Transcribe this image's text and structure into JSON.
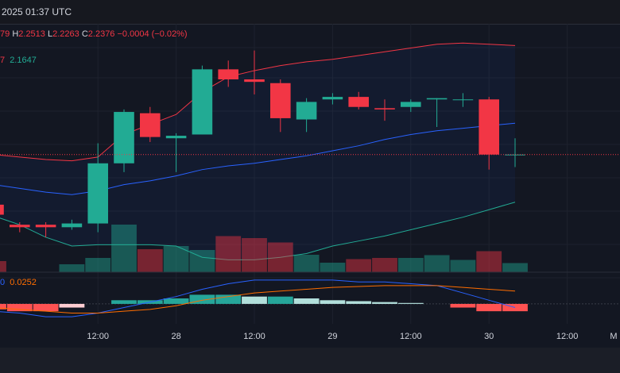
{
  "header": {
    "timestamp": "2025 01:37 UTC"
  },
  "legend": {
    "open_value": "79",
    "high_label": "H",
    "high_value": "2.2513",
    "low_label": "L",
    "low_value": "2.2263",
    "close_label": "C",
    "close_value": "2.2376",
    "change": "−0.0004 (−0.02%)",
    "bb_prefix": "7",
    "bb_value": "2.1647",
    "macd_prefix": "0",
    "macd_value": "0.0252"
  },
  "colors": {
    "up": "#22ab94",
    "down": "#f23645",
    "bb_upper": "#f23645",
    "bb_basis": "#2962ff",
    "bb_lower": "#22ab94",
    "macd": "#2962ff",
    "signal": "#ff6d00"
  },
  "xaxis": {
    "ticks": [
      {
        "label": "12:00",
        "at": 4
      },
      {
        "label": "28",
        "at": 7
      },
      {
        "label": "12:00",
        "at": 10
      },
      {
        "label": "29",
        "at": 13
      },
      {
        "label": "12:00",
        "at": 16
      },
      {
        "label": "30",
        "at": 19
      },
      {
        "label": "12:00",
        "at": 22
      },
      {
        "label": "M",
        "at": 25
      }
    ]
  },
  "chart_data": {
    "type": "candlestick",
    "candles": [
      {
        "o": 2.172,
        "h": 2.176,
        "l": 2.154,
        "c": 2.164,
        "v": 0.28
      },
      {
        "o": 2.156,
        "h": 2.158,
        "l": 2.15,
        "c": 2.154,
        "v": 0.0
      },
      {
        "o": 2.156,
        "h": 2.158,
        "l": 2.146,
        "c": 2.154,
        "v": 0.0
      },
      {
        "o": 2.154,
        "h": 2.16,
        "l": 2.152,
        "c": 2.157,
        "v": 0.2
      },
      {
        "o": 2.157,
        "h": 2.221,
        "l": 2.15,
        "c": 2.205,
        "v": 0.36
      },
      {
        "o": 2.205,
        "h": 2.248,
        "l": 2.198,
        "c": 2.246,
        "v": 1.2
      },
      {
        "o": 2.245,
        "h": 2.25,
        "l": 2.222,
        "c": 2.226,
        "v": 0.58
      },
      {
        "o": 2.225,
        "h": 2.229,
        "l": 2.198,
        "c": 2.227,
        "v": 0.66
      },
      {
        "o": 2.228,
        "h": 2.283,
        "l": 2.228,
        "c": 2.28,
        "v": 0.56
      },
      {
        "o": 2.28,
        "h": 2.287,
        "l": 2.266,
        "c": 2.272,
        "v": 0.91
      },
      {
        "o": 2.272,
        "h": 2.295,
        "l": 2.26,
        "c": 2.27,
        "v": 0.86
      },
      {
        "o": 2.269,
        "h": 2.272,
        "l": 2.23,
        "c": 2.241,
        "v": 0.75
      },
      {
        "o": 2.24,
        "h": 2.257,
        "l": 2.23,
        "c": 2.254,
        "v": 0.44
      },
      {
        "o": 2.256,
        "h": 2.261,
        "l": 2.252,
        "c": 2.258,
        "v": 0.24
      },
      {
        "o": 2.258,
        "h": 2.262,
        "l": 2.248,
        "c": 2.25,
        "v": 0.33
      },
      {
        "o": 2.249,
        "h": 2.256,
        "l": 2.239,
        "c": 2.248,
        "v": 0.36
      },
      {
        "o": 2.25,
        "h": 2.256,
        "l": 2.246,
        "c": 2.254,
        "v": 0.36
      },
      {
        "o": 2.256,
        "h": 2.257,
        "l": 2.234,
        "c": 2.257,
        "v": 0.43
      },
      {
        "o": 2.256,
        "h": 2.261,
        "l": 2.25,
        "c": 2.256,
        "v": 0.31
      },
      {
        "o": 2.256,
        "h": 2.258,
        "l": 2.2,
        "c": 2.212,
        "v": 0.53
      },
      {
        "o": 2.212,
        "h": 2.225,
        "l": 2.202,
        "c": 2.212,
        "v": 0.23
      }
    ],
    "bb_upper": [
      2.212,
      2.21,
      2.208,
      2.207,
      2.21,
      2.228,
      2.236,
      2.244,
      2.262,
      2.274,
      2.279,
      2.283,
      2.286,
      2.288,
      2.291,
      2.294,
      2.297,
      2.3,
      2.301,
      2.3,
      2.299
    ],
    "bb_basis": [
      2.188,
      2.185,
      2.182,
      2.18,
      2.183,
      2.188,
      2.191,
      2.195,
      2.2,
      2.203,
      2.205,
      2.208,
      2.211,
      2.215,
      2.219,
      2.224,
      2.228,
      2.231,
      2.233,
      2.235,
      2.237
    ],
    "bb_lower": [
      2.163,
      2.156,
      2.146,
      2.139,
      2.14,
      2.14,
      2.14,
      2.139,
      2.13,
      2.128,
      2.128,
      2.13,
      2.133,
      2.139,
      2.143,
      2.147,
      2.152,
      2.157,
      2.162,
      2.168,
      2.174
    ],
    "price_range": [
      2.12,
      2.31
    ],
    "last_price": 2.212,
    "macd": [
      -0.004,
      -0.005,
      -0.007,
      -0.007,
      -0.005,
      -0.002,
      0.001,
      0.004,
      0.008,
      0.011,
      0.013,
      0.013,
      0.013,
      0.013,
      0.012,
      0.012,
      0.011,
      0.01,
      0.006,
      0.002,
      -0.002
    ],
    "signal": [
      -0.002,
      -0.003,
      -0.004,
      -0.005,
      -0.005,
      -0.004,
      -0.003,
      -0.001,
      0.002,
      0.004,
      0.006,
      0.007,
      0.008,
      0.009,
      0.0095,
      0.01,
      0.01,
      0.01,
      0.009,
      0.008,
      0.007
    ],
    "hist": [
      -0.003,
      -0.004,
      -0.004,
      -0.002,
      0.0,
      0.002,
      0.002,
      0.003,
      0.005,
      0.005,
      0.004,
      0.004,
      0.003,
      0.002,
      0.0015,
      0.001,
      0.0005,
      0.0,
      -0.002,
      -0.004,
      -0.004
    ],
    "macd_range": [
      -0.01,
      0.016
    ]
  }
}
